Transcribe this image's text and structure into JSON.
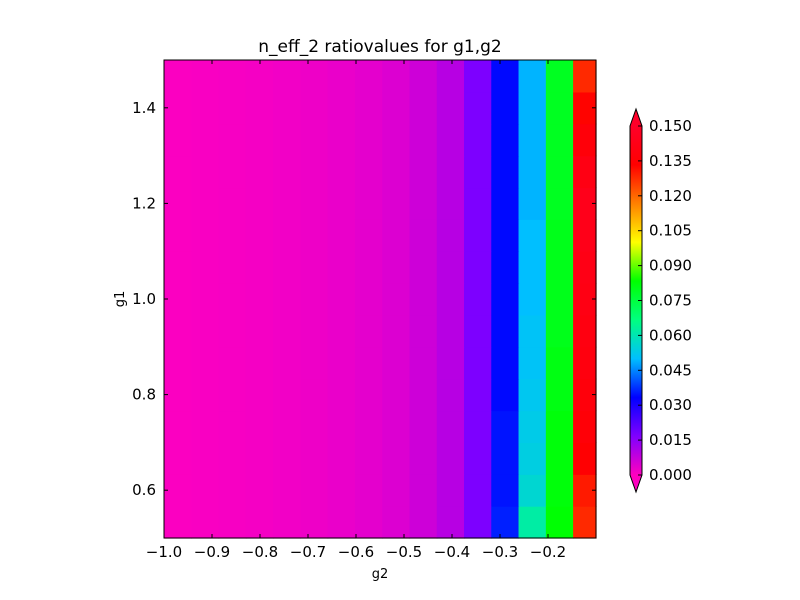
{
  "chart_data": {
    "type": "heatmap",
    "title": "n_eff_2 ratiovalues for g1,g2",
    "xlabel": "g2",
    "ylabel": "g1",
    "xlim": [
      -1.0,
      -0.1
    ],
    "ylim": [
      0.5,
      1.5
    ],
    "x_ticks": [
      "−1.0",
      "−0.9",
      "−0.8",
      "−0.7",
      "−0.6",
      "−0.5",
      "−0.4",
      "−0.3",
      "−0.2"
    ],
    "x_tick_values": [
      -1.0,
      -0.9,
      -0.8,
      -0.7,
      -0.6,
      -0.5,
      -0.4,
      -0.3,
      -0.2
    ],
    "y_ticks": [
      "0.6",
      "0.8",
      "1.0",
      "1.2",
      "1.4"
    ],
    "y_tick_values": [
      0.6,
      0.8,
      1.0,
      1.2,
      1.4
    ],
    "x_edges": [
      -1.0,
      -0.9432,
      -0.8864,
      -0.8295,
      -0.7727,
      -0.7159,
      -0.6591,
      -0.6023,
      -0.5455,
      -0.4886,
      -0.4318,
      -0.375,
      -0.3182,
      -0.2614,
      -0.2045,
      -0.1477,
      -0.0909
    ],
    "y_edges": [
      0.5,
      0.5667,
      0.6333,
      0.7,
      0.7667,
      0.8333,
      0.9,
      0.9667,
      1.0333,
      1.1,
      1.1667,
      1.2333,
      1.3,
      1.3667,
      1.4333,
      1.5
    ],
    "column_values": [
      0.0005,
      0.0008,
      0.001,
      0.0013,
      0.0017,
      0.0022,
      0.0028,
      0.0036,
      0.0046,
      0.0065,
      0.0095,
      0.017,
      0.034,
      0.05,
      0.08,
      0.142
    ],
    "rows_bottom_to_top": [
      [
        0.0005,
        0.0008,
        0.001,
        0.0013,
        0.0017,
        0.0022,
        0.0028,
        0.0036,
        0.0046,
        0.0065,
        0.0095,
        0.017,
        0.036,
        0.062,
        0.083,
        0.128
      ],
      [
        0.0005,
        0.0008,
        0.001,
        0.0013,
        0.0017,
        0.0022,
        0.0028,
        0.0036,
        0.0046,
        0.0065,
        0.0095,
        0.017,
        0.035,
        0.056,
        0.082,
        0.13
      ],
      [
        0.0005,
        0.0008,
        0.001,
        0.0013,
        0.0017,
        0.0022,
        0.0028,
        0.0036,
        0.0046,
        0.0065,
        0.0095,
        0.017,
        0.035,
        0.054,
        0.082,
        0.134
      ],
      [
        0.0005,
        0.0008,
        0.001,
        0.0013,
        0.0017,
        0.0022,
        0.0028,
        0.0036,
        0.0046,
        0.0065,
        0.0095,
        0.017,
        0.035,
        0.053,
        0.082,
        0.136
      ],
      [
        0.0005,
        0.0008,
        0.001,
        0.0013,
        0.0017,
        0.0022,
        0.0028,
        0.0036,
        0.0046,
        0.0065,
        0.0095,
        0.017,
        0.034,
        0.052,
        0.081,
        0.138
      ],
      [
        0.0005,
        0.0008,
        0.001,
        0.0013,
        0.0017,
        0.0022,
        0.0028,
        0.0036,
        0.0046,
        0.0065,
        0.0095,
        0.017,
        0.034,
        0.051,
        0.081,
        0.139
      ],
      [
        0.0005,
        0.0008,
        0.001,
        0.0013,
        0.0017,
        0.0022,
        0.0028,
        0.0036,
        0.0046,
        0.0065,
        0.0095,
        0.017,
        0.034,
        0.051,
        0.08,
        0.14
      ],
      [
        0.0005,
        0.0008,
        0.001,
        0.0013,
        0.0017,
        0.0022,
        0.0028,
        0.0036,
        0.0046,
        0.0065,
        0.0095,
        0.017,
        0.034,
        0.05,
        0.08,
        0.141
      ],
      [
        0.0005,
        0.0008,
        0.001,
        0.0013,
        0.0017,
        0.0022,
        0.0028,
        0.0036,
        0.0046,
        0.0065,
        0.0095,
        0.017,
        0.034,
        0.05,
        0.08,
        0.142
      ],
      [
        0.0005,
        0.0008,
        0.001,
        0.0013,
        0.0017,
        0.0022,
        0.0028,
        0.0036,
        0.0046,
        0.0065,
        0.0095,
        0.017,
        0.034,
        0.05,
        0.08,
        0.143
      ],
      [
        0.0005,
        0.0008,
        0.001,
        0.0013,
        0.0017,
        0.0022,
        0.0028,
        0.0036,
        0.0046,
        0.0065,
        0.0095,
        0.017,
        0.034,
        0.049,
        0.079,
        0.144
      ],
      [
        0.0005,
        0.0008,
        0.001,
        0.0013,
        0.0017,
        0.0022,
        0.0028,
        0.0036,
        0.0046,
        0.0065,
        0.0095,
        0.017,
        0.034,
        0.049,
        0.079,
        0.141
      ],
      [
        0.0005,
        0.0008,
        0.001,
        0.0013,
        0.0017,
        0.0022,
        0.0028,
        0.0036,
        0.0046,
        0.0065,
        0.0095,
        0.017,
        0.034,
        0.049,
        0.079,
        0.137
      ],
      [
        0.0005,
        0.0008,
        0.001,
        0.0013,
        0.0017,
        0.0022,
        0.0028,
        0.0036,
        0.0046,
        0.0065,
        0.0095,
        0.017,
        0.034,
        0.049,
        0.079,
        0.133
      ],
      [
        0.0005,
        0.0008,
        0.001,
        0.0013,
        0.0017,
        0.0022,
        0.0028,
        0.0036,
        0.0046,
        0.0065,
        0.0095,
        0.017,
        0.034,
        0.049,
        0.079,
        0.128
      ]
    ],
    "colorbar": {
      "min": 0.0,
      "max": 0.15,
      "extend": "both",
      "tick_values": [
        0.0,
        0.015,
        0.03,
        0.045,
        0.06,
        0.075,
        0.09,
        0.105,
        0.12,
        0.135,
        0.15
      ],
      "tick_labels": [
        "0.000",
        "0.015",
        "0.030",
        "0.045",
        "0.060",
        "0.075",
        "0.090",
        "0.105",
        "0.120",
        "0.135",
        "0.150"
      ],
      "colormap": "gist_rainbow_r",
      "colormap_stops": [
        "#ff00bf",
        "#8000ff",
        "#0000ff",
        "#00bfff",
        "#00ff80",
        "#00ff00",
        "#ffff00",
        "#ff8000",
        "#ff0000",
        "#ff0029"
      ],
      "under_color": "#ff00bf",
      "over_color": "#ff0029",
      "position": "right"
    },
    "grid": false
  }
}
